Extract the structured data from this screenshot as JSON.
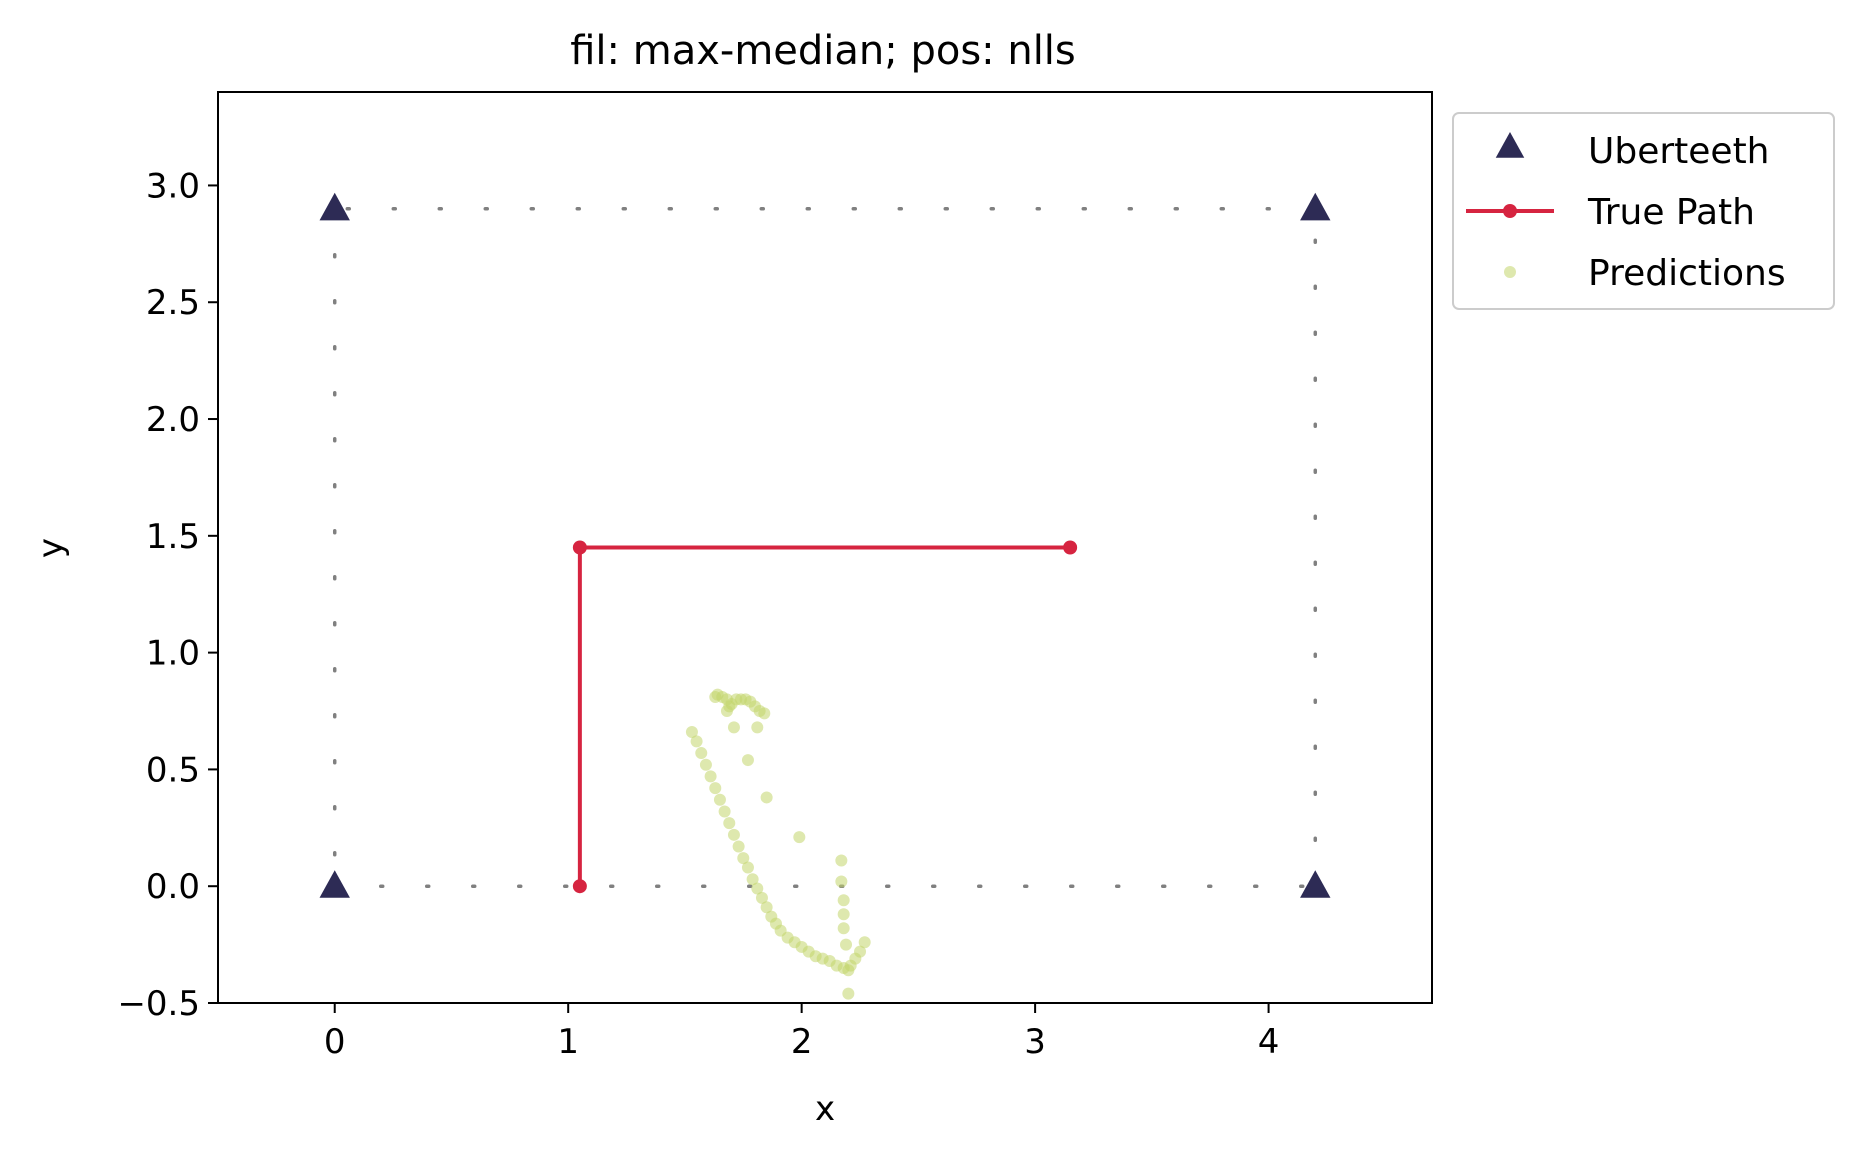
{
  "chart_data": {
    "type": "scatter",
    "title": "fil: max-median; pos: nlls",
    "xlabel": "x",
    "ylabel": "y",
    "xlim": [
      -0.5,
      4.7
    ],
    "ylim": [
      -0.5,
      3.4
    ],
    "x_ticks": [
      0,
      1,
      2,
      3,
      4
    ],
    "y_ticks": [
      -0.5,
      0.0,
      0.5,
      1.0,
      1.5,
      2.0,
      2.5,
      3.0
    ],
    "x_tick_labels": [
      "0",
      "1",
      "2",
      "3",
      "4"
    ],
    "y_tick_labels": [
      "−0.5",
      "0.0",
      "0.5",
      "1.0",
      "1.5",
      "2.0",
      "2.5",
      "3.0"
    ],
    "grid": false,
    "legend_position": "outside-top-right",
    "boundary": {
      "style": "dotted",
      "color": "#808080",
      "corners": [
        [
          0,
          0
        ],
        [
          4.2,
          0
        ],
        [
          4.2,
          2.9
        ],
        [
          0,
          2.9
        ]
      ]
    },
    "series": [
      {
        "name": "Uberteeth",
        "kind": "marker",
        "marker": "triangle",
        "color": "#2d2b55",
        "points": [
          [
            0,
            0
          ],
          [
            4.2,
            0
          ],
          [
            4.2,
            2.9
          ],
          [
            0,
            2.9
          ]
        ]
      },
      {
        "name": "True Path",
        "kind": "line",
        "marker": "circle",
        "color": "#d62440",
        "points": [
          [
            1.05,
            0.0
          ],
          [
            1.05,
            1.45
          ],
          [
            3.15,
            1.45
          ]
        ]
      },
      {
        "name": "Predictions",
        "kind": "scatter",
        "marker": "circle",
        "color": "#c2d66c",
        "points": [
          [
            1.53,
            0.66
          ],
          [
            1.55,
            0.62
          ],
          [
            1.57,
            0.57
          ],
          [
            1.59,
            0.52
          ],
          [
            1.61,
            0.47
          ],
          [
            1.63,
            0.42
          ],
          [
            1.65,
            0.37
          ],
          [
            1.67,
            0.32
          ],
          [
            1.69,
            0.27
          ],
          [
            1.71,
            0.22
          ],
          [
            1.73,
            0.17
          ],
          [
            1.75,
            0.12
          ],
          [
            1.77,
            0.08
          ],
          [
            1.79,
            0.03
          ],
          [
            1.81,
            -0.01
          ],
          [
            1.83,
            -0.05
          ],
          [
            1.85,
            -0.09
          ],
          [
            1.87,
            -0.13
          ],
          [
            1.89,
            -0.16
          ],
          [
            1.91,
            -0.19
          ],
          [
            1.94,
            -0.22
          ],
          [
            1.97,
            -0.24
          ],
          [
            2.0,
            -0.26
          ],
          [
            2.03,
            -0.28
          ],
          [
            2.06,
            -0.3
          ],
          [
            2.09,
            -0.31
          ],
          [
            2.12,
            -0.32
          ],
          [
            2.15,
            -0.34
          ],
          [
            2.18,
            -0.35
          ],
          [
            2.21,
            -0.34
          ],
          [
            2.23,
            -0.31
          ],
          [
            2.25,
            -0.28
          ],
          [
            2.27,
            -0.24
          ],
          [
            1.63,
            0.81
          ],
          [
            1.64,
            0.82
          ],
          [
            1.66,
            0.81
          ],
          [
            1.68,
            0.8
          ],
          [
            1.69,
            0.77
          ],
          [
            1.68,
            0.75
          ],
          [
            1.7,
            0.78
          ],
          [
            1.72,
            0.8
          ],
          [
            1.74,
            0.8
          ],
          [
            1.76,
            0.8
          ],
          [
            1.78,
            0.79
          ],
          [
            1.8,
            0.77
          ],
          [
            1.82,
            0.75
          ],
          [
            1.84,
            0.74
          ],
          [
            1.71,
            0.68
          ],
          [
            1.77,
            0.54
          ],
          [
            1.81,
            0.68
          ],
          [
            1.85,
            0.38
          ],
          [
            1.99,
            0.21
          ],
          [
            2.17,
            0.11
          ],
          [
            2.17,
            0.02
          ],
          [
            2.18,
            -0.06
          ],
          [
            2.18,
            -0.12
          ],
          [
            2.18,
            -0.18
          ],
          [
            2.19,
            -0.25
          ],
          [
            2.2,
            -0.36
          ],
          [
            2.2,
            -0.46
          ]
        ]
      }
    ]
  }
}
